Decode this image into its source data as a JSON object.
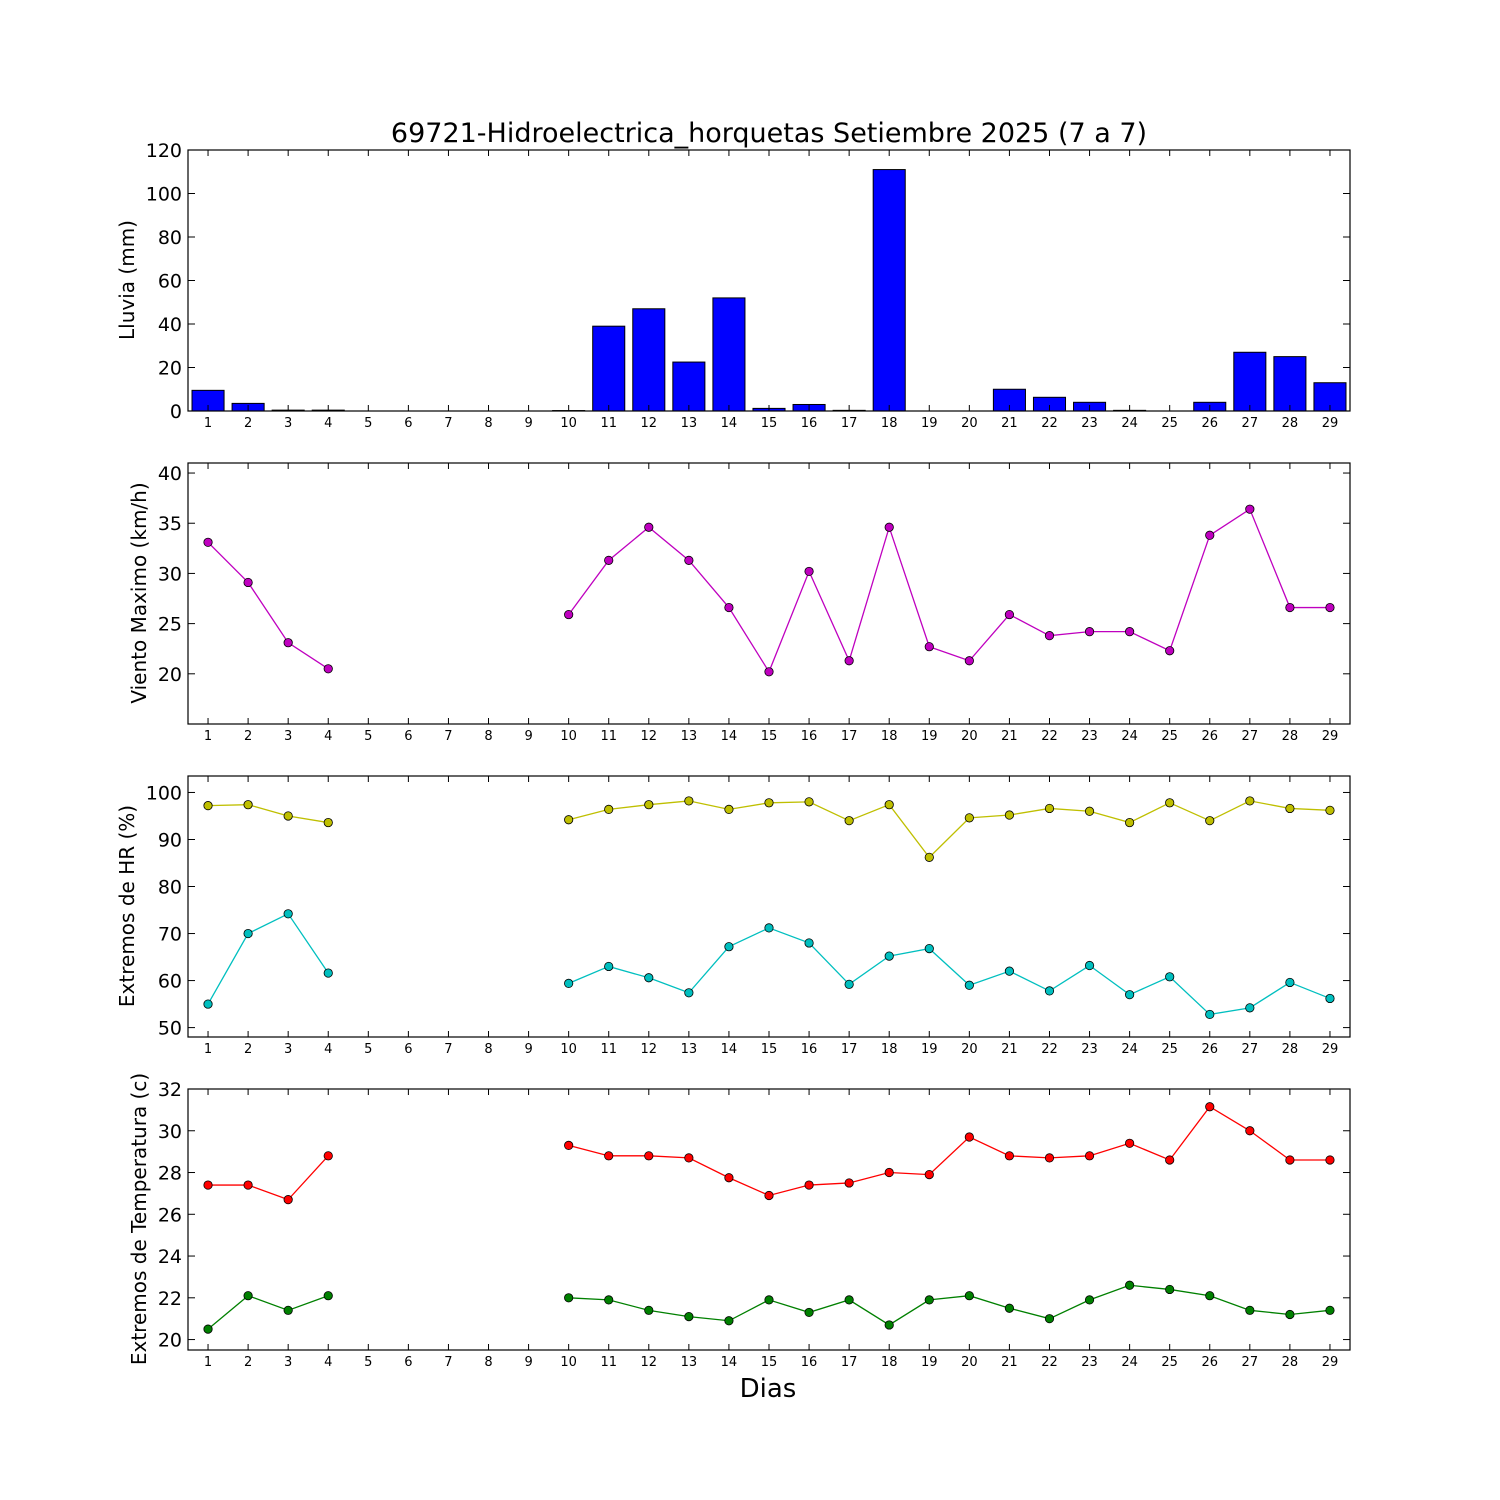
{
  "chart_data": [
    {
      "type": "bar",
      "id": "lluvia",
      "title": "69721-Hidroelectrica_horquetas Setiembre 2025  (7 a 7)",
      "ylabel": "Lluvia (mm)",
      "xlabel": "",
      "ylim": [
        0,
        120
      ],
      "yticks": [
        0,
        20,
        40,
        60,
        80,
        100,
        120
      ],
      "categories": [
        "1",
        "2",
        "3",
        "4",
        "5",
        "6",
        "7",
        "8",
        "9",
        "10",
        "11",
        "12",
        "13",
        "14",
        "15",
        "16",
        "17",
        "18",
        "19",
        "20",
        "21",
        "22",
        "23",
        "24",
        "25",
        "26",
        "27",
        "28",
        "29"
      ],
      "series": [
        {
          "name": "Lluvia",
          "color": "#0000ff",
          "values": [
            9.5,
            3.5,
            0.4,
            0.4,
            0,
            0,
            0,
            0,
            0,
            0.2,
            39,
            47,
            22.5,
            52,
            1.2,
            3,
            0.3,
            111,
            0,
            0,
            10,
            6.3,
            4,
            0.3,
            0,
            4,
            27,
            25,
            13
          ]
        }
      ]
    },
    {
      "type": "line",
      "id": "viento",
      "ylabel": "Viento Maximo (km/h)",
      "xlabel": "",
      "ylim": [
        15,
        41
      ],
      "yticks": [
        20,
        25,
        30,
        35,
        40
      ],
      "categories": [
        "1",
        "2",
        "3",
        "4",
        "5",
        "6",
        "7",
        "8",
        "9",
        "10",
        "11",
        "12",
        "13",
        "14",
        "15",
        "16",
        "17",
        "18",
        "19",
        "20",
        "21",
        "22",
        "23",
        "24",
        "25",
        "26",
        "27",
        "28",
        "29"
      ],
      "series": [
        {
          "name": "Viento Maximo",
          "color": "#bf00bf",
          "values": [
            33.1,
            29.1,
            23.1,
            20.5,
            null,
            null,
            null,
            null,
            null,
            25.9,
            31.3,
            34.6,
            31.3,
            26.6,
            20.2,
            30.2,
            21.3,
            34.6,
            22.7,
            21.3,
            25.9,
            23.8,
            24.2,
            24.2,
            22.3,
            33.8,
            36.4,
            26.6,
            26.6
          ]
        }
      ]
    },
    {
      "type": "line",
      "id": "hr",
      "ylabel": "Extremos de HR (%)",
      "xlabel": "",
      "ylim": [
        48,
        103.5
      ],
      "yticks": [
        50,
        60,
        70,
        80,
        90,
        100
      ],
      "categories": [
        "1",
        "2",
        "3",
        "4",
        "5",
        "6",
        "7",
        "8",
        "9",
        "10",
        "11",
        "12",
        "13",
        "14",
        "15",
        "16",
        "17",
        "18",
        "19",
        "20",
        "21",
        "22",
        "23",
        "24",
        "25",
        "26",
        "27",
        "28",
        "29"
      ],
      "series": [
        {
          "name": "HR maxima",
          "color": "#bfbf00",
          "values": [
            97.2,
            97.4,
            95.0,
            93.6,
            null,
            null,
            null,
            null,
            null,
            94.2,
            96.4,
            97.4,
            98.2,
            96.4,
            97.8,
            98.0,
            94.0,
            97.4,
            86.2,
            94.6,
            95.2,
            96.6,
            96.0,
            93.6,
            97.8,
            94.0,
            98.2,
            96.6,
            96.2
          ]
        },
        {
          "name": "HR minima",
          "color": "#00bfbf",
          "values": [
            55.0,
            70.0,
            74.2,
            61.6,
            null,
            null,
            null,
            null,
            null,
            59.4,
            63.0,
            60.6,
            57.4,
            67.2,
            71.2,
            68.0,
            59.2,
            65.2,
            66.8,
            59.0,
            62.0,
            57.8,
            63.2,
            57.0,
            60.8,
            52.8,
            54.2,
            59.6,
            56.2
          ]
        }
      ]
    },
    {
      "type": "line",
      "id": "temperatura",
      "ylabel": "Extremos de Temperatura (c)",
      "xlabel": "Dias",
      "ylim": [
        19.5,
        32
      ],
      "yticks": [
        20,
        22,
        24,
        26,
        28,
        30,
        32
      ],
      "categories": [
        "1",
        "2",
        "3",
        "4",
        "5",
        "6",
        "7",
        "8",
        "9",
        "10",
        "11",
        "12",
        "13",
        "14",
        "15",
        "16",
        "17",
        "18",
        "19",
        "20",
        "21",
        "22",
        "23",
        "24",
        "25",
        "26",
        "27",
        "28",
        "29"
      ],
      "series": [
        {
          "name": "Temperatura maxima",
          "color": "#ff0000",
          "values": [
            27.4,
            27.4,
            26.7,
            28.8,
            null,
            null,
            null,
            null,
            null,
            29.3,
            28.8,
            28.8,
            28.7,
            27.75,
            26.9,
            27.4,
            27.5,
            28.0,
            27.9,
            29.7,
            28.8,
            28.7,
            28.8,
            29.4,
            28.6,
            31.15,
            30.0,
            28.6,
            28.6
          ]
        },
        {
          "name": "Temperatura minima",
          "color": "#008000",
          "values": [
            20.5,
            22.1,
            21.4,
            22.1,
            null,
            null,
            null,
            null,
            null,
            22.0,
            21.9,
            21.4,
            21.1,
            20.9,
            21.9,
            21.3,
            21.9,
            20.7,
            21.9,
            22.1,
            21.5,
            21.0,
            21.9,
            22.6,
            22.4,
            22.1,
            21.4,
            21.2,
            21.4
          ]
        }
      ]
    }
  ]
}
